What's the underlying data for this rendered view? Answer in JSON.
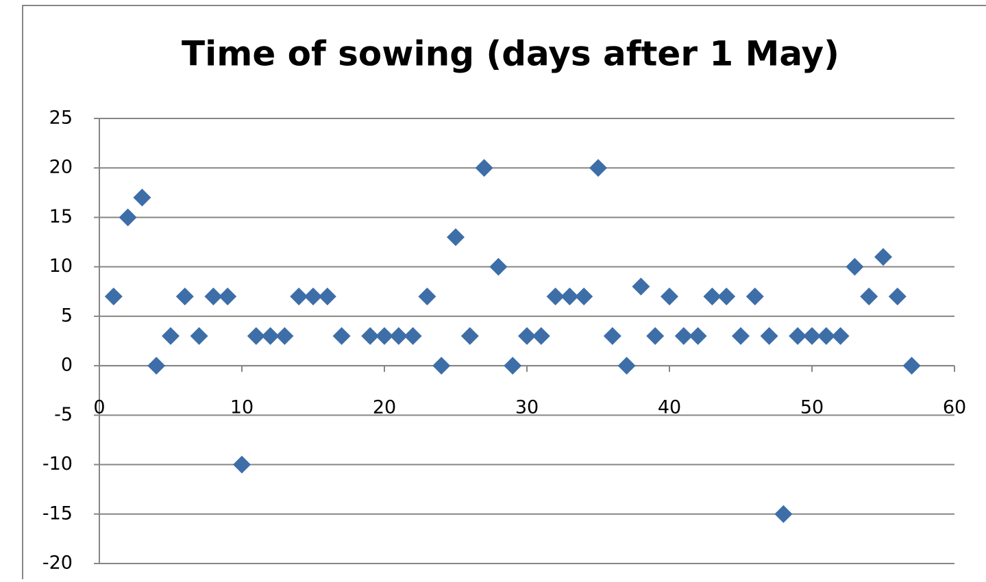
{
  "chart_data": {
    "type": "scatter",
    "title": "Time of sowing (days after 1 May)",
    "x": [
      1,
      2,
      3,
      4,
      5,
      6,
      7,
      8,
      9,
      10,
      11,
      12,
      13,
      14,
      15,
      16,
      17,
      19,
      20,
      21,
      22,
      23,
      24,
      25,
      26,
      27,
      28,
      29,
      30,
      31,
      32,
      33,
      34,
      35,
      36,
      37,
      38,
      39,
      40,
      41,
      42,
      43,
      44,
      45,
      46,
      47,
      48,
      49,
      50,
      51,
      52,
      53,
      54,
      55,
      56,
      57
    ],
    "values": [
      7,
      15,
      17,
      0,
      3,
      7,
      3,
      7,
      7,
      -10,
      3,
      3,
      3,
      7,
      7,
      7,
      3,
      3,
      3,
      3,
      3,
      7,
      0,
      13,
      3,
      20,
      10,
      0,
      3,
      3,
      7,
      7,
      7,
      20,
      3,
      0,
      8,
      3,
      7,
      3,
      3,
      7,
      7,
      3,
      7,
      3,
      -15,
      3,
      3,
      3,
      3,
      10,
      7,
      11,
      7,
      0
    ],
    "color": "#3d6ea8",
    "marker": "diamond",
    "xlim": [
      0,
      60
    ],
    "xticks": [
      0,
      10,
      20,
      30,
      40,
      50,
      60
    ],
    "ylim": [
      -20,
      25
    ],
    "yticks": [
      -20,
      -15,
      -10,
      -5,
      0,
      5,
      10,
      15,
      20,
      25
    ],
    "grid": true
  }
}
